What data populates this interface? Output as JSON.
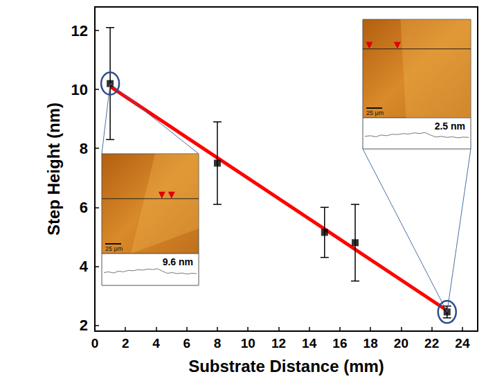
{
  "chart_data": {
    "type": "scatter",
    "x": [
      1,
      8,
      15,
      17,
      23
    ],
    "values": [
      10.2,
      7.5,
      5.15,
      4.8,
      2.45
    ],
    "errors": [
      1.9,
      1.4,
      0.85,
      1.3,
      0.2
    ],
    "color": "#000000",
    "marker": "square",
    "fit": {
      "x": [
        1,
        23
      ],
      "values": [
        10.1,
        2.5
      ],
      "color": "#ff0000"
    },
    "xlabel": "Substrate Distance (mm)",
    "ylabel": "Step Height (nm)",
    "xlim": [
      0,
      25
    ],
    "xticks": [
      0,
      2,
      4,
      6,
      8,
      10,
      12,
      14,
      16,
      18,
      20,
      22,
      24
    ],
    "ylim": [
      1.8,
      12.8
    ],
    "yticks": [
      2,
      4,
      6,
      8,
      10,
      12
    ],
    "grid": false,
    "insets": [
      {
        "x": 1,
        "label": "9.6 nm",
        "scale_bar": "25 μm"
      },
      {
        "x": 23,
        "label": "2.5 nm",
        "scale_bar": "25 μm"
      }
    ]
  }
}
